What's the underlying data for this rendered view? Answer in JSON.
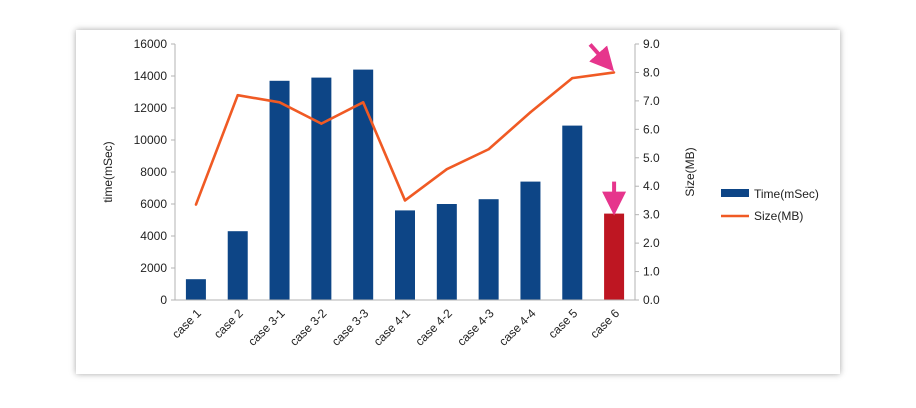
{
  "chart_data": {
    "type": "bar",
    "categories": [
      "case 1",
      "case 2",
      "case 3-1",
      "case 3-2",
      "case 3-3",
      "case 4-1",
      "case 4-2",
      "case 4-3",
      "case 4-4",
      "case 5",
      "case 6"
    ],
    "series": [
      {
        "name": "Time(mSec)",
        "kind": "bar",
        "axis": "left",
        "color": "#0d4586",
        "highlight_color": "#be1622",
        "highlight_index": 10,
        "values": [
          1300,
          4300,
          13700,
          13900,
          14400,
          5600,
          6000,
          6300,
          7400,
          10900,
          5400
        ]
      },
      {
        "name": "Size(MB)",
        "kind": "line",
        "axis": "right",
        "color": "#f05a24",
        "values": [
          3.35,
          7.2,
          6.95,
          6.2,
          6.95,
          3.5,
          4.6,
          5.3,
          6.6,
          7.8,
          8.0
        ]
      }
    ],
    "ylabel": "time(mSec)",
    "y2label": "Size(MB)",
    "ylim": [
      0,
      16000
    ],
    "y2lim": [
      0,
      9.0
    ],
    "yticks": [
      "0",
      "2000",
      "4000",
      "6000",
      "8000",
      "10000",
      "12000",
      "14000",
      "16000"
    ],
    "y2ticks": [
      "0.0",
      "1.0",
      "2.0",
      "3.0",
      "4.0",
      "5.0",
      "6.0",
      "7.0",
      "8.0",
      "9.0"
    ],
    "legend_position": "right",
    "grid": false,
    "annotations": [
      {
        "type": "arrow",
        "color": "#e6358c",
        "target": "Size(MB) line at case 6"
      },
      {
        "type": "arrow",
        "color": "#e6358c",
        "target": "Time(mSec) bar at case 6"
      }
    ]
  }
}
